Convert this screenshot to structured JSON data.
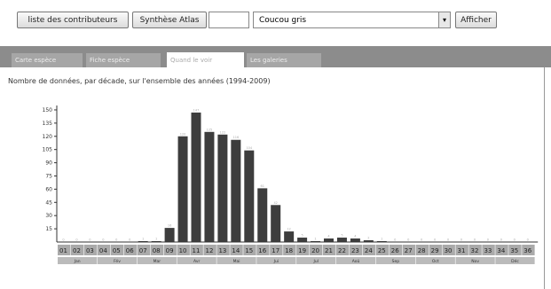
{
  "toolbar": {
    "contributors_label": "liste des contributeurs",
    "synthesis_label": "Synthèse Atlas",
    "species_value": "Coucou gris",
    "show_label": "Afficher"
  },
  "tabs": [
    {
      "label": "Carte espèce",
      "active": false
    },
    {
      "label": "Fiche espèce",
      "active": false
    },
    {
      "label": "Quand le voir",
      "active": true
    },
    {
      "label": "Les galeries",
      "active": false
    }
  ],
  "chart_title": "Nombre de données, par décade, sur l'ensemble des années (1994-2009)",
  "chart_data": {
    "type": "bar",
    "title": "Nombre de données, par décade, sur l'ensemble des années (1994-2009)",
    "ylim": [
      0,
      155
    ],
    "yticks": [
      15,
      30,
      45,
      60,
      75,
      90,
      105,
      120,
      135,
      150
    ],
    "grid": false,
    "categories": [
      "01",
      "02",
      "03",
      "04",
      "05",
      "06",
      "07",
      "08",
      "09",
      "10",
      "11",
      "12",
      "13",
      "14",
      "15",
      "16",
      "17",
      "18",
      "19",
      "20",
      "21",
      "22",
      "23",
      "24",
      "25",
      "26",
      "27",
      "28",
      "29",
      "30",
      "31",
      "32",
      "33",
      "34",
      "35",
      "36"
    ],
    "values": [
      0,
      0,
      0,
      0,
      0,
      0,
      1,
      1,
      16,
      120,
      147,
      125,
      122,
      116,
      104,
      61,
      42,
      12,
      5,
      1,
      4,
      5,
      4,
      2,
      1,
      0,
      0,
      0,
      0,
      0,
      0,
      0,
      0,
      0,
      0,
      0
    ],
    "months": [
      {
        "label": "Jan",
        "span": 3
      },
      {
        "label": "Fév",
        "span": 3
      },
      {
        "label": "Mar",
        "span": 3
      },
      {
        "label": "Avr",
        "span": 3
      },
      {
        "label": "Mai",
        "span": 3
      },
      {
        "label": "Jui",
        "span": 3
      },
      {
        "label": "Jul",
        "span": 3
      },
      {
        "label": "Aoû",
        "span": 3
      },
      {
        "label": "Sep",
        "span": 3
      },
      {
        "label": "Oct",
        "span": 3
      },
      {
        "label": "Nov",
        "span": 3
      },
      {
        "label": "Déc",
        "span": 3
      }
    ]
  }
}
